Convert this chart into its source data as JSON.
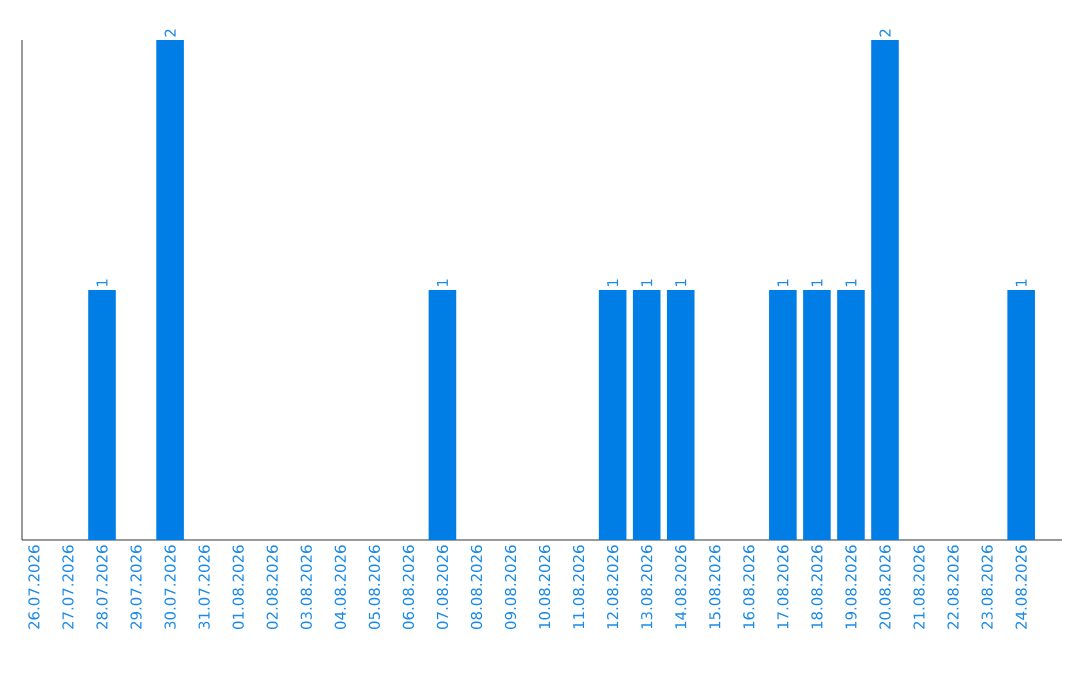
{
  "chart_data": {
    "type": "bar",
    "categories": [
      "26.07.2026",
      "27.07.2026",
      "28.07.2026",
      "29.07.2026",
      "30.07.2026",
      "31.07.2026",
      "01.08.2026",
      "02.08.2026",
      "03.08.2026",
      "04.08.2026",
      "05.08.2026",
      "06.08.2026",
      "07.08.2026",
      "08.08.2026",
      "09.08.2026",
      "10.08.2026",
      "11.08.2026",
      "12.08.2026",
      "13.08.2026",
      "14.08.2026",
      "15.08.2026",
      "16.08.2026",
      "17.08.2026",
      "18.08.2026",
      "19.08.2026",
      "20.08.2026",
      "21.08.2026",
      "22.08.2026",
      "23.08.2026",
      "24.08.2026"
    ],
    "values": [
      0,
      0,
      1,
      0,
      2,
      0,
      0,
      0,
      0,
      0,
      0,
      0,
      1,
      0,
      0,
      0,
      0,
      1,
      1,
      1,
      0,
      0,
      1,
      1,
      1,
      2,
      0,
      0,
      0,
      1
    ],
    "value_labels": [
      null,
      null,
      "1",
      null,
      "2",
      null,
      null,
      null,
      null,
      null,
      null,
      null,
      "1",
      null,
      null,
      null,
      null,
      "1",
      "1",
      "1",
      null,
      null,
      "1",
      "1",
      "1",
      "2",
      null,
      null,
      null,
      "1"
    ],
    "color": "#007ee5",
    "tick_labels": "x"
  }
}
